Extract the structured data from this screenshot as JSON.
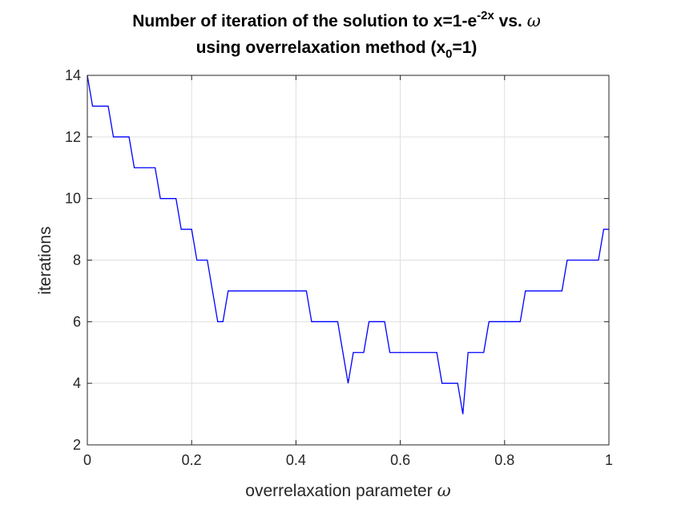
{
  "chart_data": {
    "type": "line",
    "title_prefix": "Number of iteration of the solution to x=1-e",
    "title_exponent": "-2x",
    "title_suffix": " vs. ",
    "title_symbol": "ω",
    "title_line2_prefix": "using overrelaxation method (x",
    "title_line2_subscript": "0",
    "title_line2_suffix": "=1)",
    "xlabel_text": "overrelaxation parameter ",
    "xlabel_symbol": "ω",
    "ylabel": "iterations",
    "xlim": [
      0,
      1
    ],
    "ylim": [
      2,
      14
    ],
    "xticks": [
      0,
      0.2,
      0.4,
      0.6,
      0.8,
      1
    ],
    "xtick_labels": [
      "0",
      "0.2",
      "0.4",
      "0.6",
      "0.8",
      "1"
    ],
    "yticks": [
      2,
      4,
      6,
      8,
      10,
      12,
      14
    ],
    "ytick_labels": [
      "2",
      "4",
      "6",
      "8",
      "10",
      "12",
      "14"
    ],
    "grid": true,
    "line_color": "#0000ff",
    "axis_color": "#262626",
    "grid_color": "#dfdfdf",
    "series": [
      {
        "x": [
          0,
          0.01,
          0.04,
          0.05,
          0.08,
          0.09,
          0.13,
          0.14,
          0.17,
          0.18,
          0.2,
          0.21,
          0.23,
          0.25,
          0.26,
          0.27,
          0.42,
          0.43,
          0.48,
          0.5,
          0.51,
          0.53,
          0.54,
          0.57,
          0.58,
          0.67,
          0.68,
          0.71,
          0.72,
          0.73,
          0.76,
          0.77,
          0.83,
          0.84,
          0.91,
          0.92,
          0.98,
          0.99,
          1
        ],
        "y": [
          14,
          13,
          13,
          12,
          12,
          11,
          11,
          10,
          10,
          9,
          9,
          8,
          8,
          6,
          6,
          7,
          7,
          6,
          6,
          4,
          5,
          5,
          6,
          6,
          5,
          5,
          4,
          4,
          3,
          5,
          5,
          6,
          6,
          7,
          7,
          8,
          8,
          9,
          9
        ]
      }
    ]
  }
}
